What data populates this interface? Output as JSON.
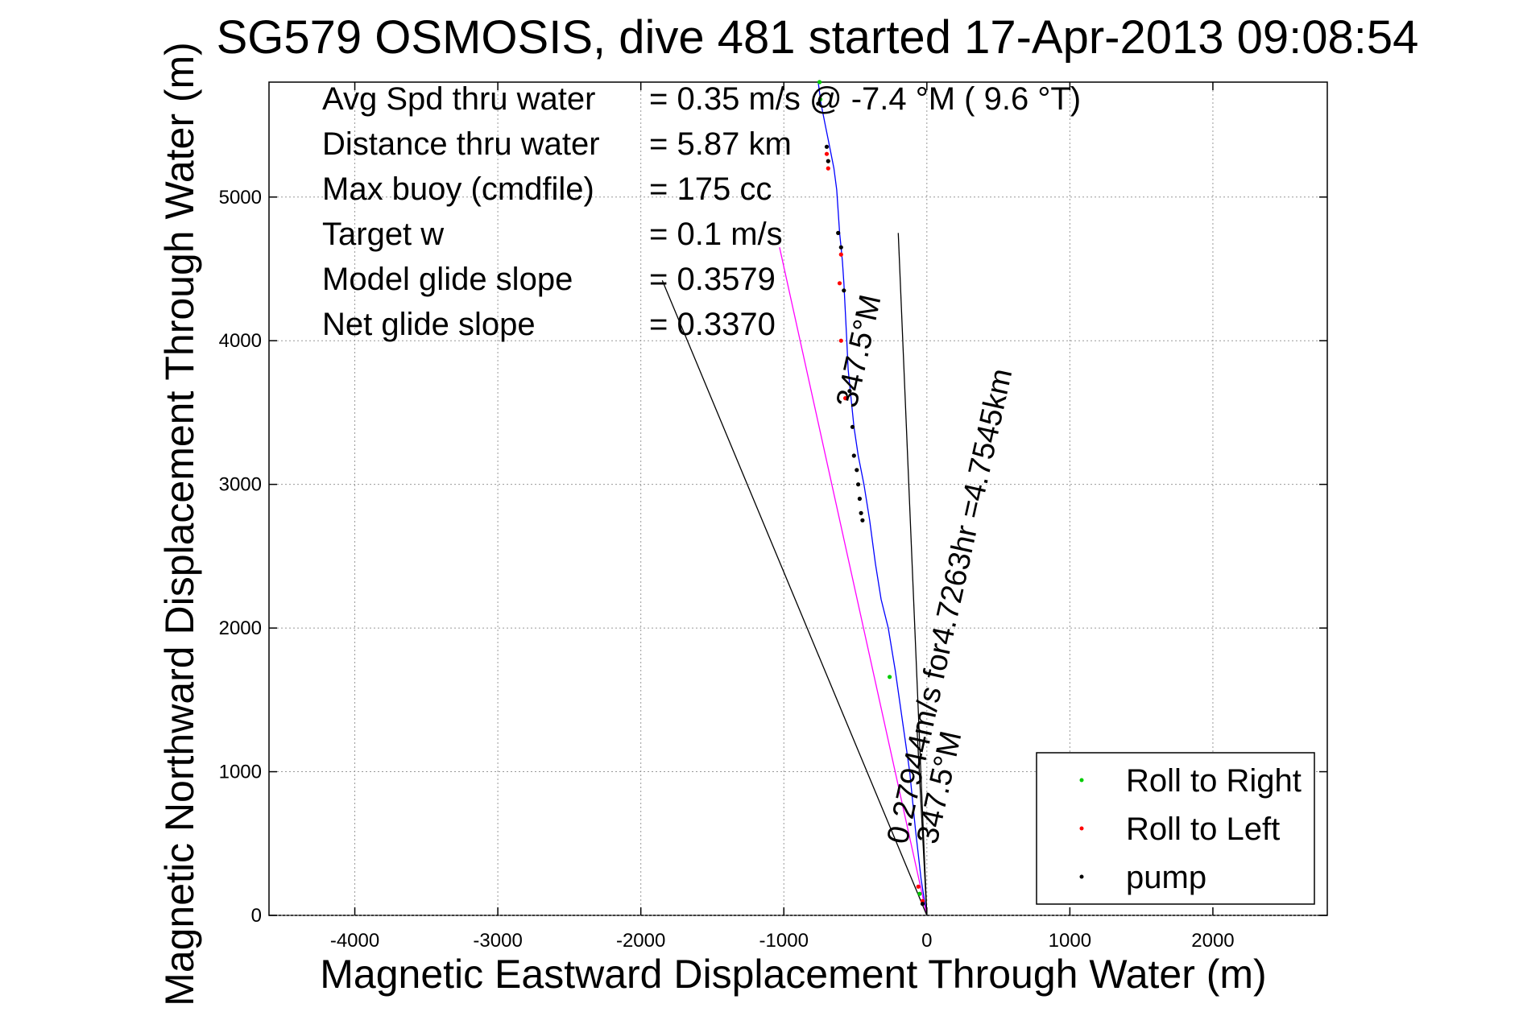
{
  "chart_data": {
    "type": "line",
    "title": "SG579 OSMOSIS, dive 481 started 17-Apr-2013 09:08:54",
    "xlabel": "Magnetic Eastward Displacement Through Water (m)",
    "ylabel": "Magnetic Northward Displacement Through Water (m)",
    "xlim": [
      -4600,
      2800
    ],
    "ylim": [
      0,
      5800
    ],
    "xticks": [
      -4000,
      -3000,
      -2000,
      -1000,
      0,
      1000,
      2000
    ],
    "yticks": [
      0,
      1000,
      2000,
      3000,
      4000,
      5000
    ],
    "grid": true,
    "legend_position": "bottom-right",
    "stats": [
      {
        "label": "Avg Spd thru water",
        "value": "=  0.35 m/s @  -7.4 °M (  9.6 °T)"
      },
      {
        "label": "Distance thru water",
        "value": "=  5.87 km"
      },
      {
        "label": "Max buoy (cmdfile)",
        "value": "= 175 cc"
      },
      {
        "label": "Target w",
        "value": "= 0.1 m/s"
      },
      {
        "label": "Model glide slope",
        "value": "= 0.3579"
      },
      {
        "label": "Net glide slope",
        "value": "= 0.3370"
      }
    ],
    "annotations": {
      "track_speed": "0.27944m/s for4.7263hr =4.7545km",
      "track_heading": "347.5°M",
      "lower_heading": "347.5°M"
    },
    "series": [
      {
        "name": "",
        "color": "#0000ff",
        "style": "line",
        "x": [
          0,
          -40,
          -80,
          -120,
          -170,
          -220,
          -270,
          -320,
          -360,
          -400,
          -440,
          -480,
          -510,
          -530,
          -550,
          -560,
          -570,
          -580,
          -590,
          -600,
          -610,
          -620,
          -630,
          -650,
          -680,
          -710,
          -740,
          -760
        ],
        "y": [
          0,
          250,
          600,
          1000,
          1350,
          1700,
          2000,
          2200,
          2450,
          2750,
          3000,
          3200,
          3400,
          3600,
          3800,
          4000,
          4200,
          4400,
          4550,
          4650,
          4750,
          4900,
          5050,
          5200,
          5350,
          5500,
          5650,
          5800
        ]
      },
      {
        "name": "",
        "color": "#ff00ff",
        "style": "line",
        "x": [
          0,
          -1030
        ],
        "y": [
          0,
          4650
        ]
      },
      {
        "name": "",
        "color": "#000000",
        "style": "line",
        "x": [
          0,
          -1850
        ],
        "y": [
          0,
          4420
        ]
      },
      {
        "name": "",
        "color": "#000000",
        "style": "line",
        "x": [
          0,
          -200
        ],
        "y": [
          0,
          4750
        ]
      },
      {
        "name": "",
        "color": "#000000",
        "style": "line",
        "x": [
          0,
          -70
        ],
        "y": [
          0,
          1320
        ]
      },
      {
        "name": "Roll to Right",
        "color": "#00cc00",
        "style": "markers",
        "x": [
          -750,
          -745,
          -260,
          -50
        ],
        "y": [
          5800,
          5680,
          1660,
          150
        ]
      },
      {
        "name": "Roll to Left",
        "color": "#ff0000",
        "style": "markers",
        "x": [
          -700,
          -690,
          -600,
          -610,
          -600,
          -570,
          -60,
          -30
        ],
        "y": [
          5300,
          5200,
          4600,
          4400,
          4000,
          3600,
          200,
          100
        ]
      },
      {
        "name": "pump",
        "color": "#000000",
        "style": "markers",
        "x": [
          -760,
          -700,
          -690,
          -620,
          -600,
          -580,
          -540,
          -520,
          -510,
          -490,
          -480,
          -470,
          -460,
          -450,
          -30
        ],
        "y": [
          5650,
          5350,
          5250,
          4750,
          4650,
          4350,
          3650,
          3400,
          3200,
          3100,
          3000,
          2900,
          2800,
          2750,
          80
        ]
      }
    ],
    "legend": [
      "Roll to Right",
      "Roll to Left",
      "pump"
    ]
  }
}
